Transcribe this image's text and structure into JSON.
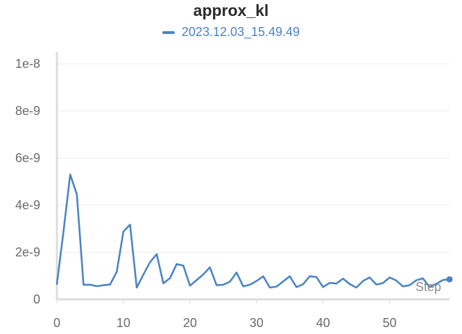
{
  "chart_data": {
    "type": "line",
    "title": "approx_kl",
    "xlabel": "Step",
    "ylabel": "",
    "xlim": [
      0,
      59
    ],
    "ylim": [
      0,
      1.05e-08
    ],
    "grid": true,
    "legend_position": "top-center",
    "x_ticks": [
      0,
      10,
      20,
      30,
      40,
      50
    ],
    "x_tick_labels": [
      "0",
      "10",
      "20",
      "30",
      "40",
      "50"
    ],
    "y_ticks": [
      0,
      2e-09,
      4e-09,
      6e-09,
      8e-09,
      1e-08
    ],
    "y_tick_labels": [
      "0",
      "2e-9",
      "4e-9",
      "6e-9",
      "8e-9",
      "1e-8"
    ],
    "series": [
      {
        "name": "2023.12.03_15.49.49",
        "color": "#4a84c4",
        "x": [
          0,
          1,
          2,
          3,
          4,
          5,
          6,
          7,
          8,
          9,
          10,
          11,
          12,
          13,
          14,
          15,
          16,
          17,
          18,
          19,
          20,
          21,
          22,
          23,
          24,
          25,
          26,
          27,
          28,
          29,
          30,
          31,
          32,
          33,
          34,
          35,
          36,
          37,
          38,
          39,
          40,
          41,
          42,
          43,
          44,
          45,
          46,
          47,
          48,
          49,
          50,
          51,
          52,
          53,
          54,
          55,
          56,
          57,
          58,
          59
        ],
        "y": [
          6.5e-10,
          2.9e-09,
          5.3e-09,
          4.45e-09,
          6.2e-10,
          6.2e-10,
          5.6e-10,
          6e-10,
          6.3e-10,
          1.17e-09,
          2.88e-09,
          3.17e-09,
          5e-10,
          1.05e-09,
          1.58e-09,
          1.92e-09,
          6.8e-10,
          9e-10,
          1.5e-09,
          1.43e-09,
          5.8e-10,
          8.2e-10,
          1.06e-09,
          1.36e-09,
          6e-10,
          6.2e-10,
          7.5e-10,
          1.14e-09,
          5.5e-10,
          6.2e-10,
          7.8e-10,
          9.8e-10,
          5e-10,
          5.4e-10,
          7.6e-10,
          9.8e-10,
          5.2e-10,
          6.4e-10,
          9.8e-10,
          9.5e-10,
          5.2e-10,
          7e-10,
          6.7e-10,
          8.8e-10,
          6.5e-10,
          5e-10,
          7.8e-10,
          9.3e-10,
          6.3e-10,
          6.9e-10,
          9.3e-10,
          8e-10,
          5.5e-10,
          6e-10,
          8.1e-10,
          8.9e-10,
          5.3e-10,
          6.6e-10,
          8.2e-10,
          8.5e-10
        ]
      }
    ]
  }
}
